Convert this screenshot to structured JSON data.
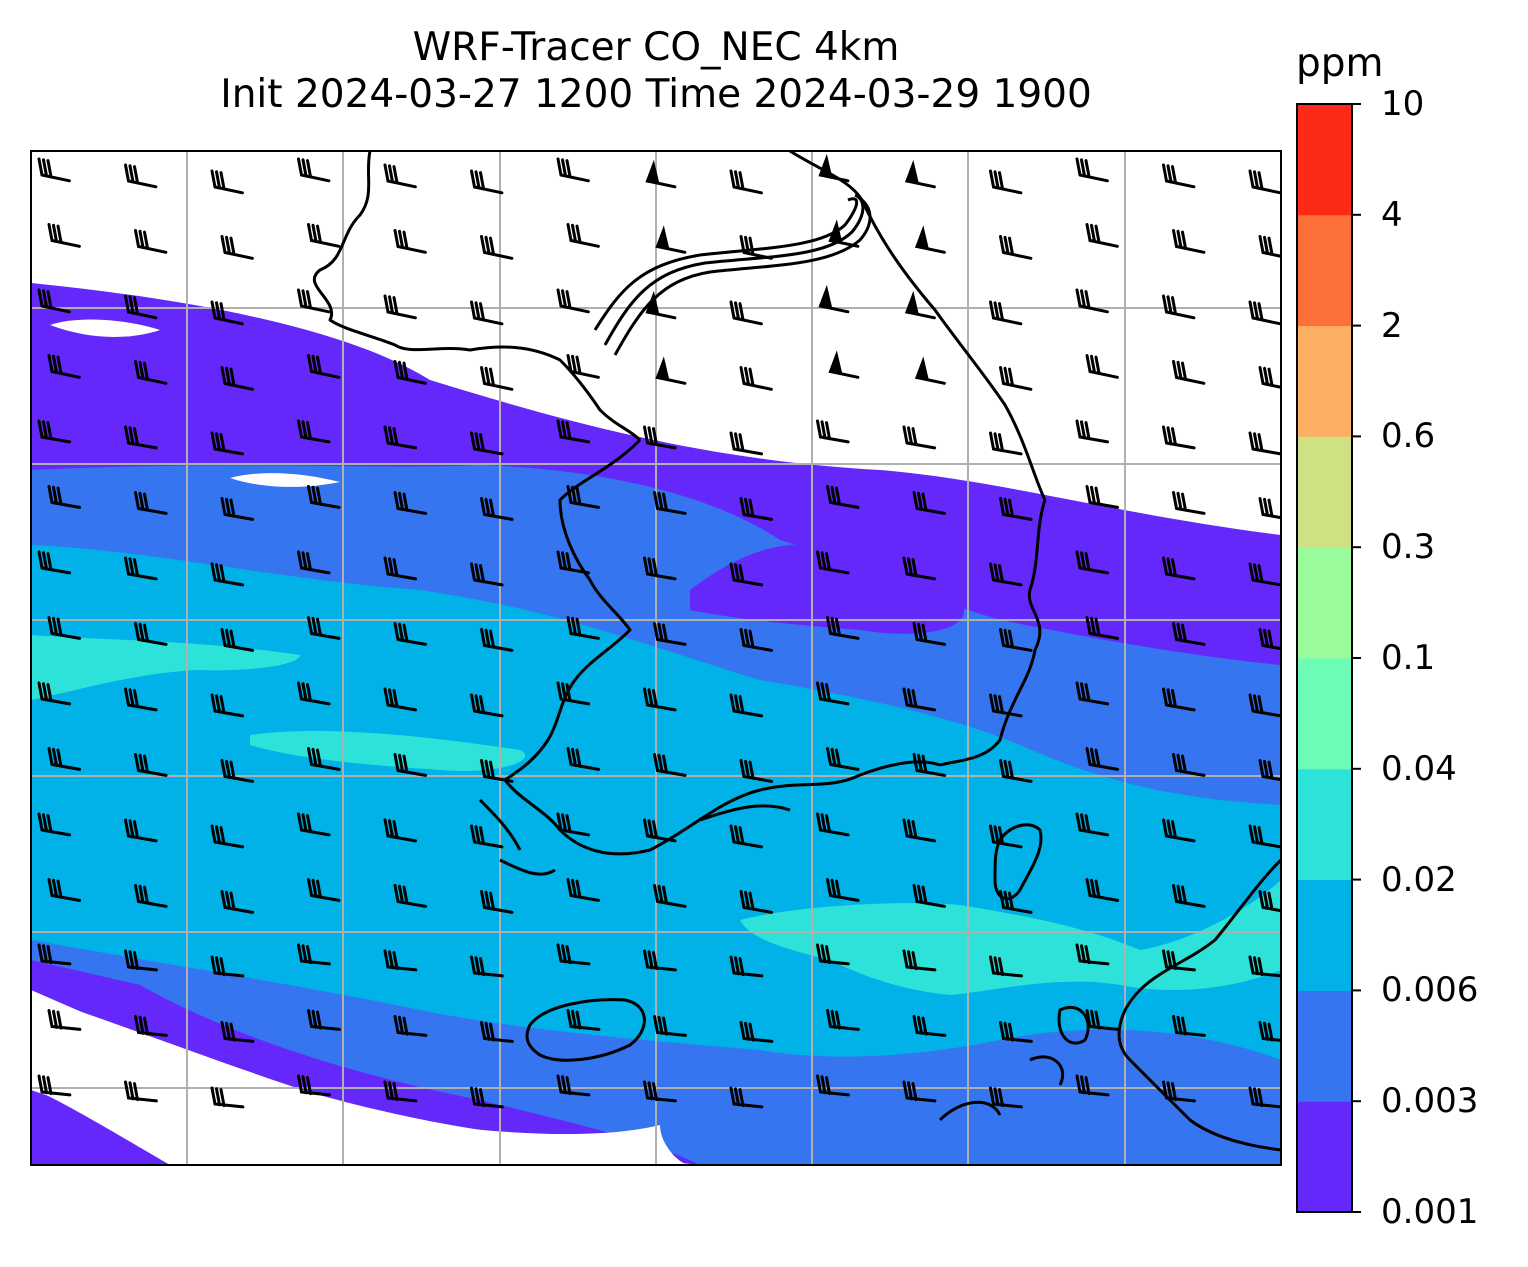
{
  "title": {
    "line1": "WRF-Tracer CO_NEC 4km",
    "line2": "Init 2024-03-27 1200 Time 2024-03-29 1900"
  },
  "colorbar": {
    "unit": "ppm",
    "levels": [
      "0.001",
      "0.003",
      "0.006",
      "0.02",
      "0.04",
      "0.1",
      "0.3",
      "0.6",
      "2",
      "4",
      "10"
    ],
    "colors": [
      "#6428fa",
      "#3575f0",
      "#00b2e8",
      "#2de2d8",
      "#6dfcb8",
      "#9afb9a",
      "#cfe283",
      "#fdb061",
      "#fd703a",
      "#fc2a16"
    ]
  },
  "map": {
    "coastline_color": "#000000",
    "gridline_color": "#b0b0b0",
    "background": "#ffffff"
  }
}
